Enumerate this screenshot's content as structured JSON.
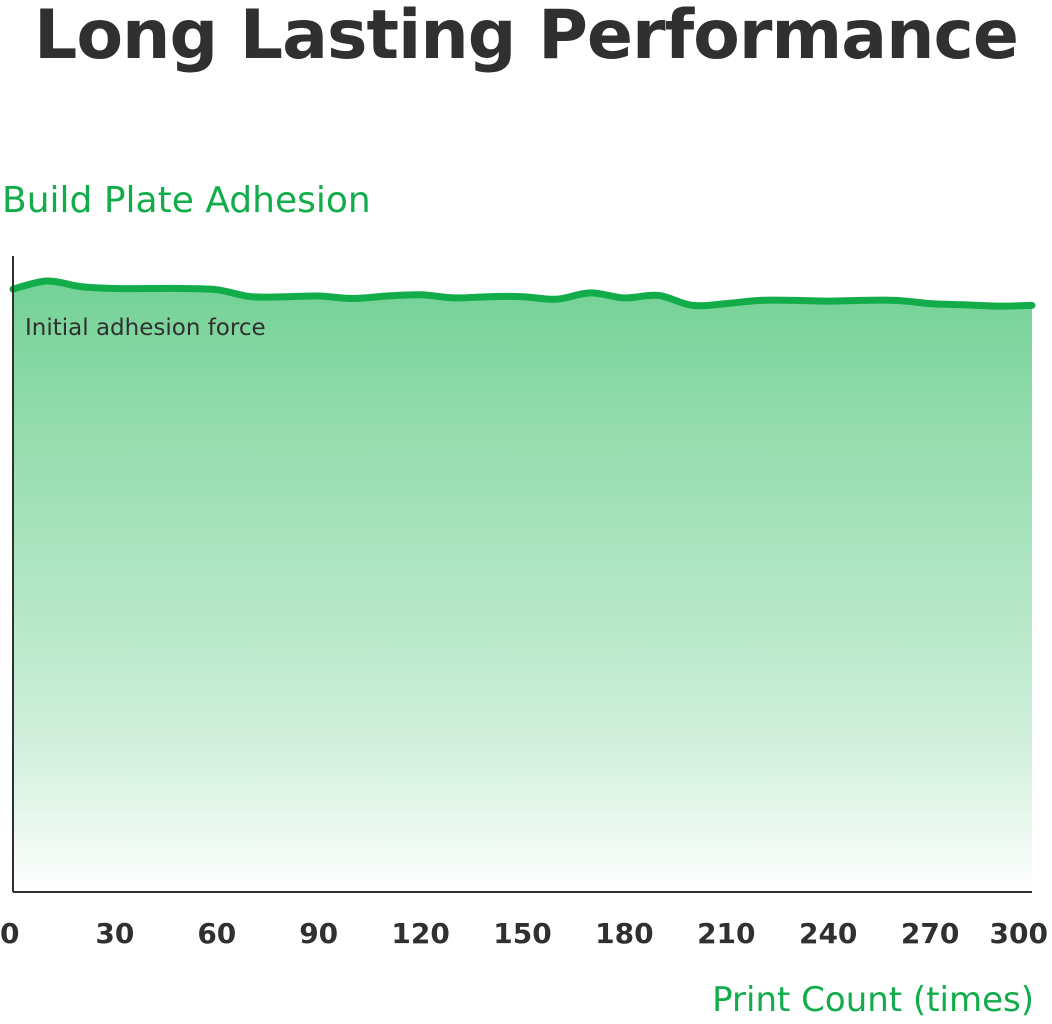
{
  "chart_data": {
    "type": "area",
    "title": "Long Lasting Performance",
    "ylabel": "Build Plate Adhesion",
    "xlabel": "Print Count (times)",
    "annotation": "Initial adhesion force",
    "x_ticks": [
      "0",
      "30",
      "60",
      "90",
      "120",
      "150",
      "180",
      "210",
      "240",
      "270",
      "300"
    ],
    "xlim": [
      0,
      300
    ],
    "ylim": [
      0,
      100
    ],
    "grid": false,
    "legend": "none",
    "line_color": "#12ad4a",
    "fill_color_top": "#6ccf8f",
    "fill_color_bottom": "#ffffff",
    "series": [
      {
        "values": [
          {
            "x": 0,
            "y": 96.0
          },
          {
            "x": 10,
            "y": 97.3
          },
          {
            "x": 20,
            "y": 96.4
          },
          {
            "x": 30,
            "y": 96.1
          },
          {
            "x": 40,
            "y": 96.1
          },
          {
            "x": 50,
            "y": 96.1
          },
          {
            "x": 60,
            "y": 95.9
          },
          {
            "x": 70,
            "y": 94.8
          },
          {
            "x": 80,
            "y": 94.8
          },
          {
            "x": 90,
            "y": 94.9
          },
          {
            "x": 100,
            "y": 94.5
          },
          {
            "x": 110,
            "y": 94.9
          },
          {
            "x": 120,
            "y": 95.1
          },
          {
            "x": 130,
            "y": 94.6
          },
          {
            "x": 140,
            "y": 94.8
          },
          {
            "x": 150,
            "y": 94.8
          },
          {
            "x": 160,
            "y": 94.4
          },
          {
            "x": 170,
            "y": 95.4
          },
          {
            "x": 180,
            "y": 94.6
          },
          {
            "x": 190,
            "y": 95.0
          },
          {
            "x": 200,
            "y": 93.4
          },
          {
            "x": 210,
            "y": 93.7
          },
          {
            "x": 220,
            "y": 94.2
          },
          {
            "x": 230,
            "y": 94.2
          },
          {
            "x": 240,
            "y": 94.1
          },
          {
            "x": 250,
            "y": 94.2
          },
          {
            "x": 260,
            "y": 94.2
          },
          {
            "x": 270,
            "y": 93.7
          },
          {
            "x": 280,
            "y": 93.5
          },
          {
            "x": 290,
            "y": 93.3
          },
          {
            "x": 300,
            "y": 93.4
          }
        ]
      }
    ]
  }
}
